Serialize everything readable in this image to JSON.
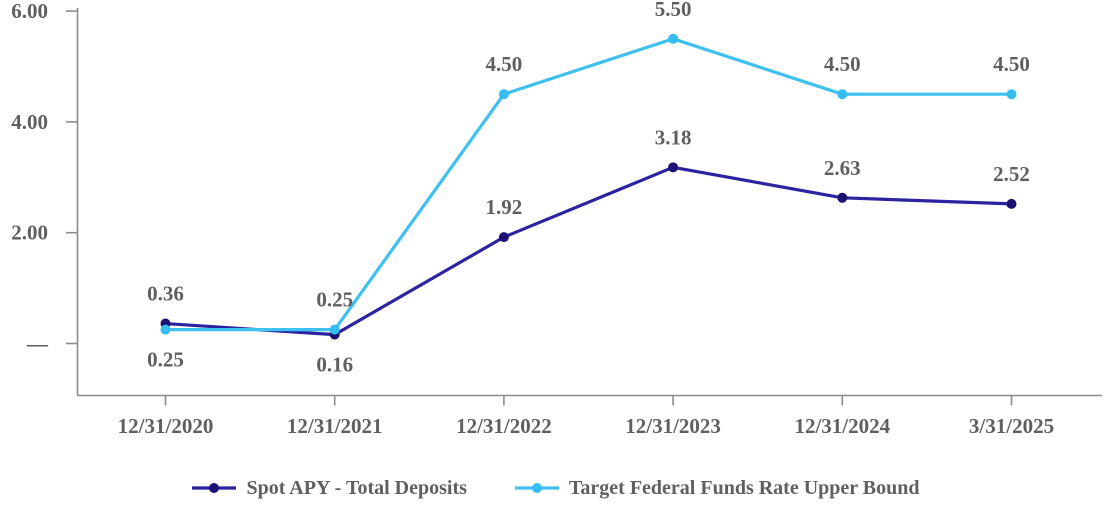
{
  "chart_data": {
    "type": "line",
    "title": "",
    "categories": [
      "12/31/2020",
      "12/31/2021",
      "12/31/2022",
      "12/31/2023",
      "12/31/2024",
      "3/31/2025"
    ],
    "series": [
      {
        "name": "Spot APY - Total Deposits",
        "line_color": "#2B23A0",
        "marker_color": "#1A1173",
        "values": [
          0.36,
          0.16,
          1.92,
          3.18,
          2.63,
          2.52
        ],
        "label_positions": [
          "above",
          "below",
          "above",
          "above",
          "above",
          "above"
        ]
      },
      {
        "name": "Target Federal Funds Rate Upper Bound",
        "line_color": "#3EC1F1",
        "marker_color": "#35BDF1",
        "values": [
          0.25,
          0.25,
          4.5,
          5.5,
          4.5,
          4.5
        ],
        "label_positions": [
          "below",
          "above",
          "above",
          "above",
          "above",
          "above"
        ]
      }
    ],
    "data_label_format": "two_decimals",
    "y_axis": {
      "min": 0,
      "max": 6,
      "tick_values": [
        6,
        4,
        2,
        0
      ],
      "tick_labels": [
        "6.00",
        "4.00",
        "2.00",
        "—"
      ]
    },
    "legend_position": "bottom",
    "grid": false,
    "colors": {
      "text": "#5F5F5F",
      "axis": "#8C8C8C",
      "background": "#FFFFFF"
    }
  }
}
